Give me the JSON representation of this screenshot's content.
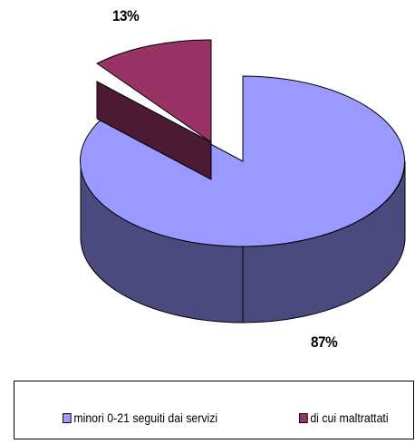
{
  "chart_data": {
    "type": "pie",
    "style": "3d-exploded",
    "categories": [
      "minori 0-21 seguiti dai servizi",
      "di cui maltrattati"
    ],
    "values": [
      87,
      13
    ],
    "data_labels": [
      "87%",
      "13%"
    ],
    "colors": {
      "minori_top": "#9999ff",
      "minori_side": "#4a4a7e",
      "maltrattati_top": "#993366",
      "maltrattati_side": "#4d1a33"
    },
    "legend_position": "bottom"
  }
}
